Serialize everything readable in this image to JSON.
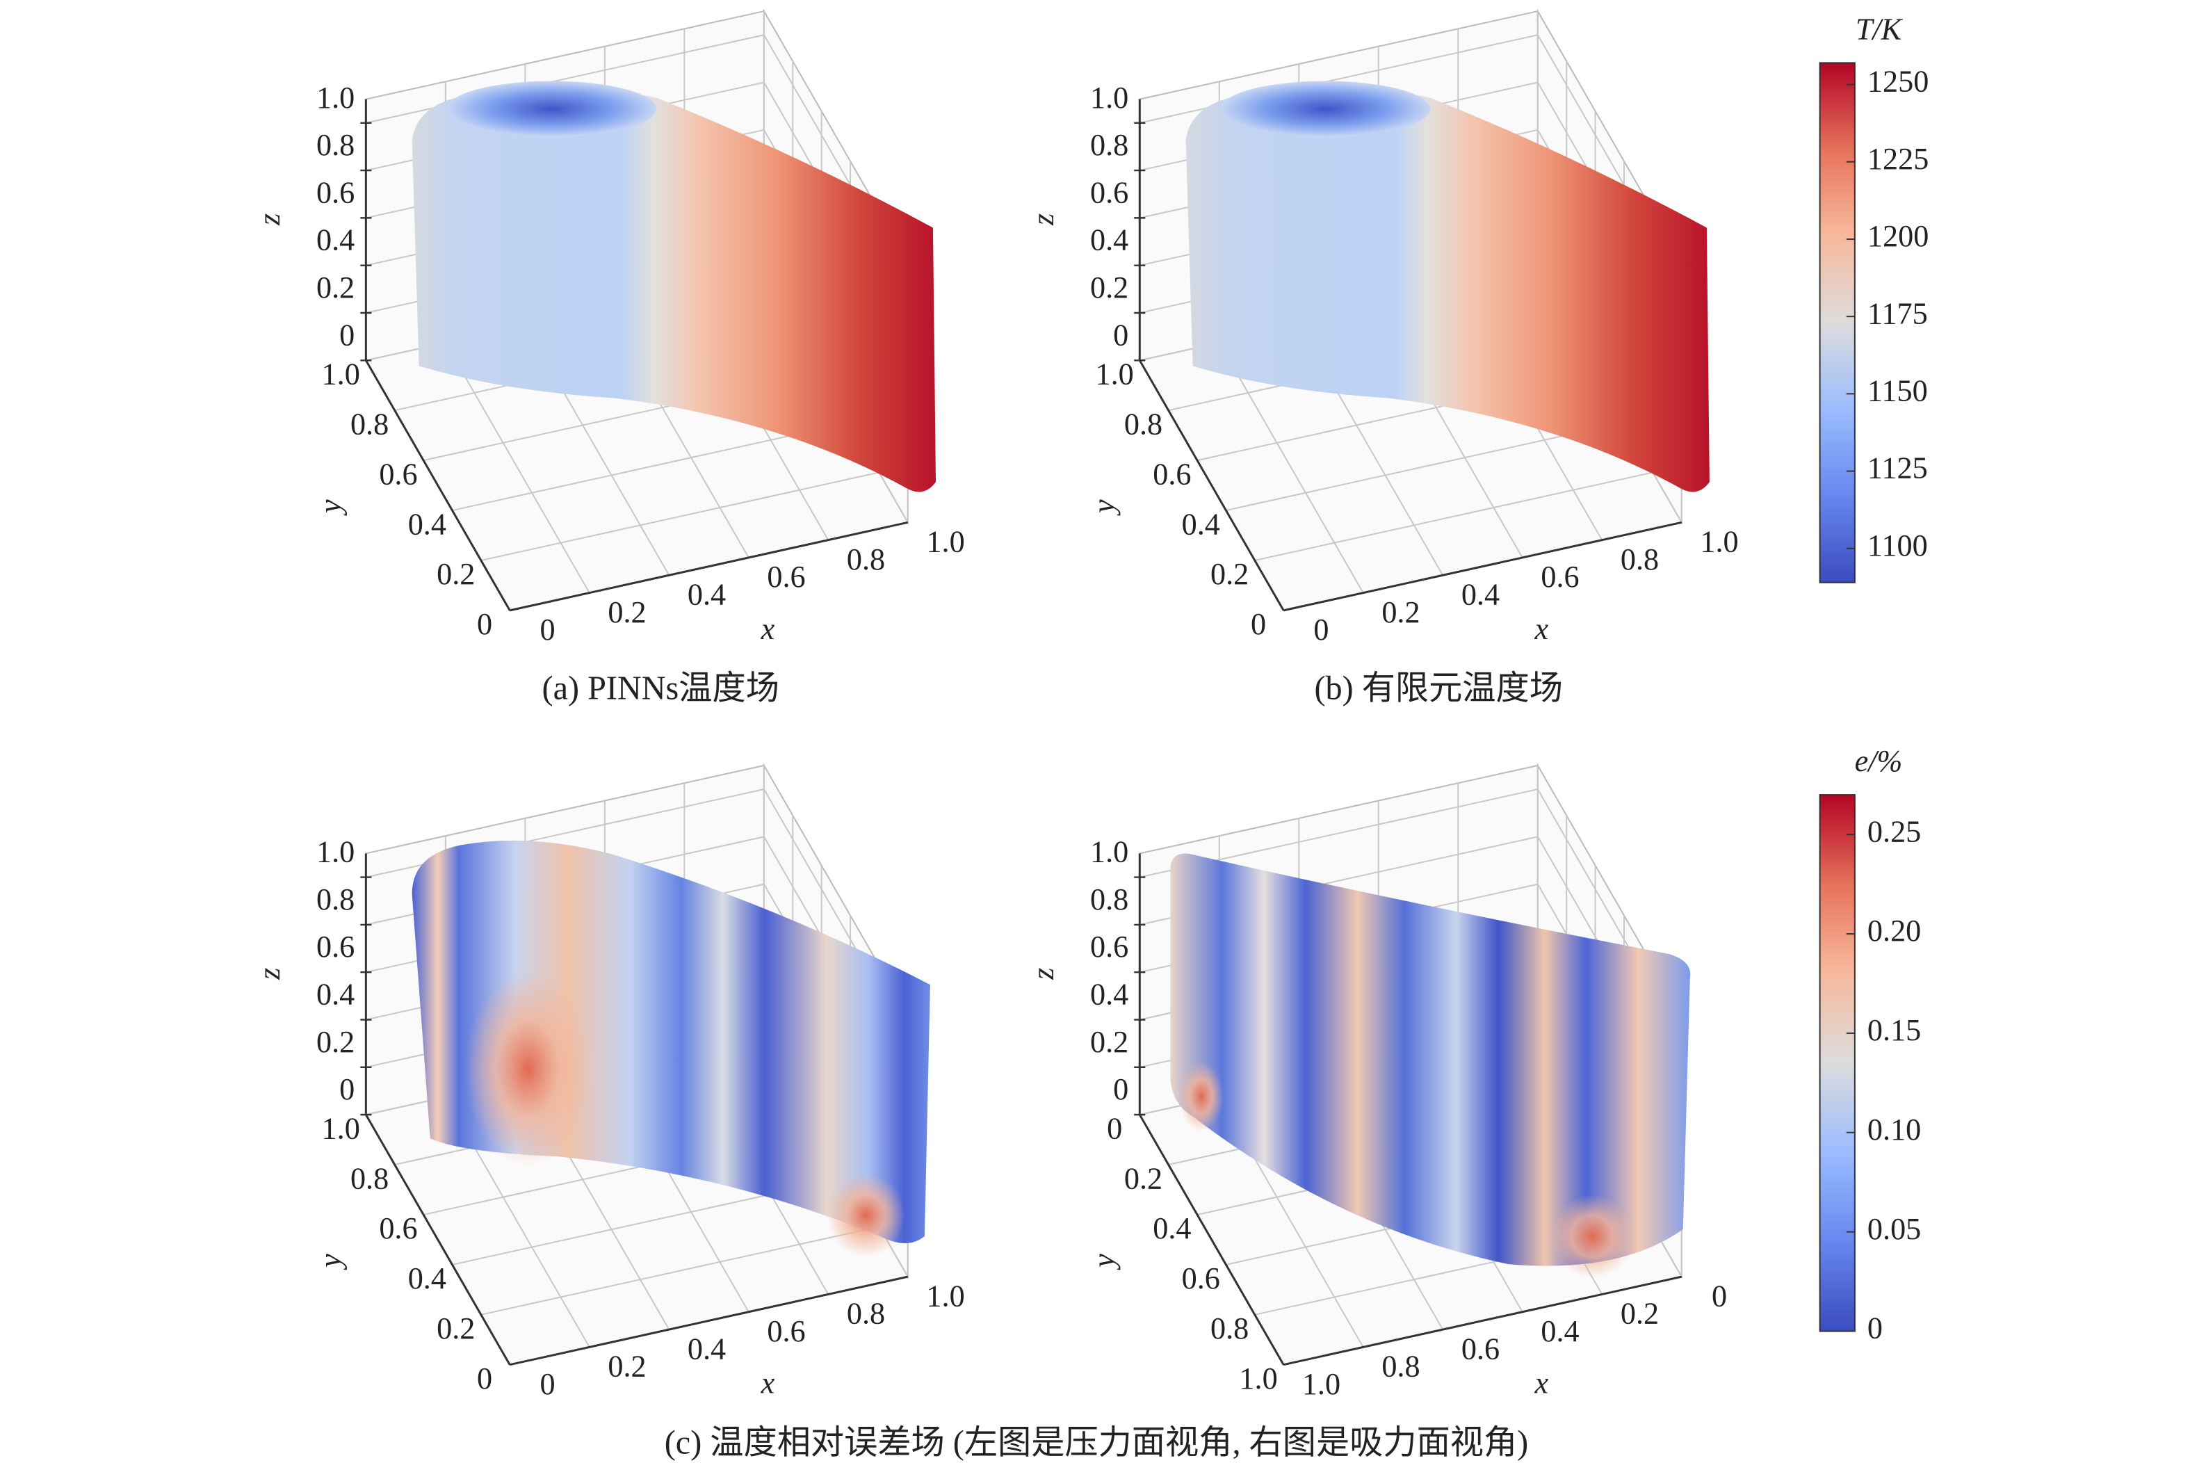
{
  "chart_data": [
    {
      "type": "surface3d",
      "caption": "(a) PINNs温度场",
      "xlabel": "x",
      "ylabel": "y",
      "zlabel": "z",
      "xlim": [
        0,
        1
      ],
      "ylim": [
        0,
        1
      ],
      "zlim": [
        0,
        1
      ],
      "xticks": [
        0,
        0.2,
        0.4,
        0.6,
        0.8,
        {
          "value": 1,
          "label": "1.0"
        }
      ],
      "yticks": [
        0,
        0.2,
        0.4,
        0.6,
        0.8,
        {
          "value": 1,
          "label": "1.0"
        }
      ],
      "zticks": [
        0,
        0.2,
        0.4,
        0.6,
        0.8,
        {
          "value": 1,
          "label": "1.0"
        }
      ]
    },
    {
      "type": "surface3d",
      "caption": "(b) 有限元温度场",
      "xlabel": "x",
      "ylabel": "y",
      "zlabel": "z",
      "xlim": [
        0,
        1
      ],
      "ylim": [
        0,
        1
      ],
      "zlim": [
        0,
        1
      ],
      "xticks": [
        0,
        0.2,
        0.4,
        0.6,
        0.8,
        {
          "value": 1,
          "label": "1.0"
        }
      ],
      "yticks": [
        0,
        0.2,
        0.4,
        0.6,
        0.8,
        {
          "value": 1,
          "label": "1.0"
        }
      ],
      "zticks": [
        0,
        0.2,
        0.4,
        0.6,
        0.8,
        {
          "value": 1,
          "label": "1.0"
        }
      ]
    },
    {
      "type": "surface3d",
      "caption": "(c) 温度相对误差场 (左图是压力面视角, 右图是吸力面视角)",
      "xlabel": "x",
      "ylabel": "y",
      "zlabel": "z",
      "xlim": [
        0,
        1
      ],
      "ylim": [
        0,
        1
      ],
      "zlim": [
        0,
        1
      ],
      "xticks": [
        0,
        0.2,
        0.4,
        0.6,
        0.8,
        {
          "value": 1,
          "label": "1.0"
        }
      ],
      "yticks": [
        0,
        0.2,
        0.4,
        0.6,
        0.8,
        {
          "value": 1,
          "label": "1.0"
        }
      ],
      "zticks": [
        0,
        0.2,
        0.4,
        0.6,
        0.8,
        {
          "value": 1,
          "label": "1.0"
        }
      ]
    },
    {
      "type": "surface3d",
      "xlabel": "x",
      "ylabel": "y",
      "zlabel": "z",
      "xlim": [
        1,
        0
      ],
      "ylim": [
        1,
        0
      ],
      "zlim": [
        0,
        1
      ],
      "xticks": [
        0,
        0.2,
        0.4,
        0.6,
        0.8,
        {
          "value": 1,
          "label": "1.0"
        }
      ],
      "yticks": [
        0,
        0.2,
        0.4,
        0.6,
        0.8,
        {
          "value": 1,
          "label": "1.0"
        }
      ],
      "zticks": [
        0,
        0.2,
        0.4,
        0.6,
        0.8,
        {
          "value": 1,
          "label": "1.0"
        }
      ]
    },
    {
      "type": "colorbar",
      "label": "T/K",
      "colormap": "coolwarm",
      "clim": [
        1089,
        1257
      ],
      "ticks": [
        1100,
        1125,
        1150,
        1175,
        1200,
        1225,
        1250
      ]
    },
    {
      "type": "colorbar",
      "label": "e/%",
      "colormap": "coolwarm",
      "clim": [
        0,
        0.27
      ],
      "ticks": [
        0,
        0.05,
        {
          "value": 0.1,
          "label": "0.10"
        },
        0.15,
        {
          "value": 0.2,
          "label": "0.20"
        },
        0.25
      ]
    }
  ]
}
